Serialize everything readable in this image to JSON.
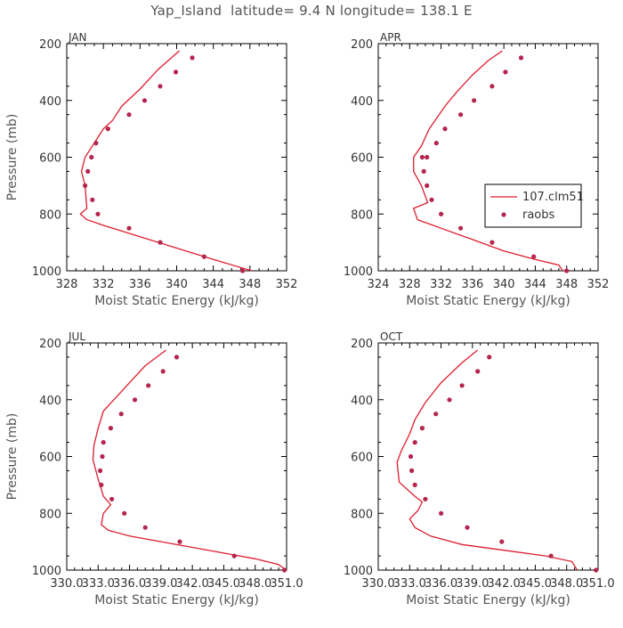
{
  "figure": {
    "title": "Yap_Island  latitude= 9.4 N longitude= 138.1 E",
    "model_color": "#dd1e2f",
    "obs_color": "#b5254d"
  },
  "legend": {
    "panel": "APR",
    "model_label": "107.clm51",
    "obs_label": "raobs"
  },
  "chart_data": [
    {
      "type": "line",
      "panel": "JAN",
      "title": "JAN",
      "xlabel": "Moist Static Energy (kJ/kg)",
      "ylabel": "Pressure (mb)",
      "xlim": [
        328,
        352
      ],
      "ylim": [
        1000,
        200
      ],
      "xticks": [
        "328",
        "332",
        "336",
        "340",
        "344",
        "348",
        "352"
      ],
      "yticks": [
        "200",
        "400",
        "600",
        "800",
        "1000"
      ],
      "series": [
        {
          "name": "107.clm51",
          "kind": "line",
          "x": [
            348.2,
            344,
            340,
            336,
            332,
            330.2,
            329.5,
            330.2,
            330,
            329.6,
            330,
            331,
            332,
            333,
            334,
            336,
            338,
            340.3
          ],
          "y": [
            1000,
            960,
            920,
            880,
            840,
            820,
            800,
            780,
            700,
            650,
            600,
            550,
            500,
            470,
            420,
            360,
            290,
            225
          ]
        },
        {
          "name": "raobs",
          "kind": "scatter",
          "x": [
            347.2,
            343,
            338.2,
            334.8,
            331.4,
            330.8,
            330,
            330.3,
            330.7,
            331.2,
            332.5,
            334.8,
            336.5,
            338.2,
            339.9,
            341.7
          ],
          "y": [
            1000,
            950,
            900,
            850,
            800,
            750,
            700,
            650,
            600,
            550,
            500,
            450,
            400,
            350,
            300,
            250
          ]
        }
      ]
    },
    {
      "type": "line",
      "panel": "APR",
      "title": "APR",
      "xlabel": "Moist Static Energy (kJ/kg)",
      "ylabel": "",
      "xlim": [
        324,
        352
      ],
      "ylim": [
        1000,
        200
      ],
      "xticks": [
        "324",
        "328",
        "332",
        "336",
        "340",
        "344",
        "348",
        "352"
      ],
      "yticks": [
        "200",
        "400",
        "600",
        "800",
        "1000"
      ],
      "series": [
        {
          "name": "107.clm51",
          "kind": "line",
          "x": [
            347.5,
            347,
            344,
            340,
            336,
            332,
            329,
            328.5,
            330.3,
            329.5,
            328.5,
            328.5,
            329.5,
            330.5,
            331.5,
            332.5,
            334,
            336,
            338,
            339.8
          ],
          "y": [
            1000,
            980,
            960,
            930,
            890,
            850,
            820,
            780,
            760,
            700,
            650,
            600,
            560,
            500,
            460,
            420,
            370,
            310,
            260,
            225
          ]
        },
        {
          "name": "raobs",
          "kind": "scatter",
          "x": [
            348,
            343.8,
            338.5,
            334.5,
            332,
            330.8,
            330.2,
            329.8,
            329.6,
            330.2,
            331.4,
            332.5,
            334.5,
            336.2,
            338.5,
            340.2,
            342.2
          ],
          "y": [
            1000,
            950,
            900,
            850,
            800,
            750,
            700,
            650,
            600,
            600,
            550,
            500,
            450,
            400,
            350,
            300,
            250
          ]
        }
      ]
    },
    {
      "type": "line",
      "panel": "JUL",
      "title": "JUL",
      "xlabel": "Moist Static Energy (kJ/kg)",
      "ylabel": "Pressure (mb)",
      "xlim": [
        330.0,
        351.0
      ],
      "ylim": [
        1000,
        200
      ],
      "xticks": [
        "330.0",
        "333.0",
        "336.0",
        "339.0",
        "342.0",
        "345.0",
        "348.0",
        "351.0"
      ],
      "yticks": [
        "200",
        "400",
        "600",
        "800",
        "1000"
      ],
      "series": [
        {
          "name": "107.clm51",
          "kind": "line",
          "x": [
            351,
            350.2,
            348,
            345,
            342,
            339,
            336,
            334,
            333.3,
            333.5,
            334.2,
            333.5,
            333,
            332.5,
            332.6,
            333,
            333.5,
            334.5,
            336,
            337.5,
            339.5
          ],
          "y": [
            1000,
            980,
            960,
            940,
            920,
            900,
            880,
            860,
            840,
            800,
            770,
            740,
            680,
            610,
            560,
            500,
            440,
            400,
            340,
            280,
            225
          ]
        },
        {
          "name": "raobs",
          "kind": "scatter",
          "x": [
            350.8,
            346,
            340.8,
            337.5,
            335.5,
            334.3,
            333.3,
            333.2,
            333.4,
            333.5,
            334.2,
            335.2,
            336.5,
            337.8,
            339.2,
            340.5
          ],
          "y": [
            1000,
            950,
            900,
            850,
            800,
            750,
            700,
            650,
            600,
            550,
            500,
            450,
            400,
            350,
            300,
            250
          ]
        }
      ]
    },
    {
      "type": "line",
      "panel": "OCT",
      "title": "OCT",
      "xlabel": "Moist Static Energy (kJ/kg)",
      "ylabel": "",
      "xlim": [
        330.0,
        351.0
      ],
      "ylim": [
        1000,
        200
      ],
      "xticks": [
        "330.0",
        "333.0",
        "336.0",
        "339.0",
        "342.0",
        "345.0",
        "348.0",
        "351.0"
      ],
      "yticks": [
        "200",
        "400",
        "600",
        "800",
        "1000"
      ],
      "series": [
        {
          "name": "107.clm51",
          "kind": "line",
          "x": [
            349,
            348.5,
            346,
            342,
            338,
            335,
            333.5,
            333,
            333.8,
            334.2,
            333.5,
            332,
            331.8,
            332.2,
            333,
            333.5,
            334.5,
            336,
            338,
            339.5
          ],
          "y": [
            1000,
            970,
            950,
            930,
            910,
            880,
            850,
            820,
            790,
            760,
            740,
            690,
            620,
            580,
            520,
            470,
            410,
            340,
            270,
            225
          ]
        },
        {
          "name": "raobs",
          "kind": "scatter",
          "x": [
            350.8,
            346.5,
            341.8,
            338.5,
            336,
            334.5,
            333.5,
            333.2,
            333.1,
            333.5,
            334.2,
            335.5,
            336.8,
            338,
            339.5,
            340.6
          ],
          "y": [
            1000,
            950,
            900,
            850,
            800,
            750,
            700,
            650,
            600,
            550,
            500,
            450,
            400,
            350,
            300,
            250
          ]
        }
      ]
    }
  ]
}
